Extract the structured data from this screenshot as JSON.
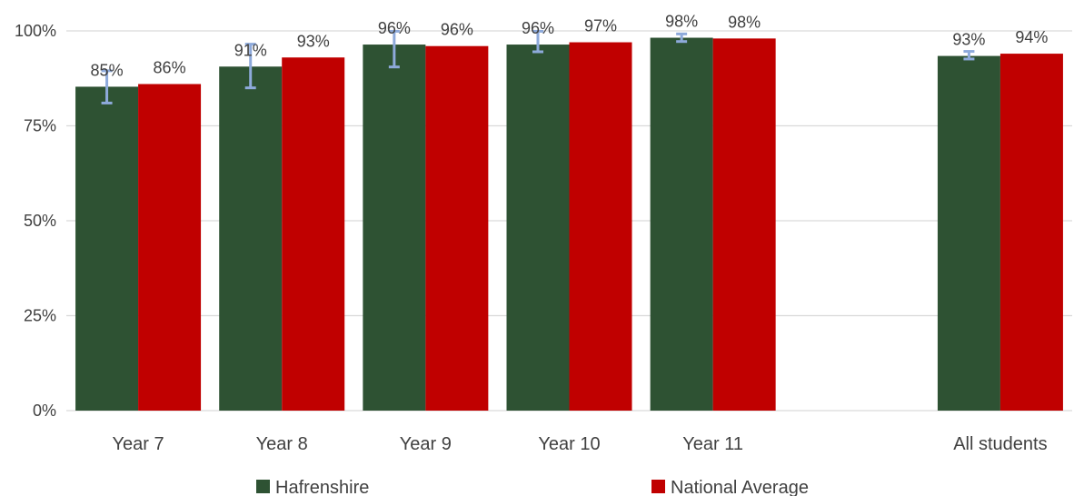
{
  "chart_data": {
    "type": "bar",
    "categories": [
      "Year 7",
      "Year 8",
      "Year 9",
      "Year 10",
      "Year 11",
      "",
      "All students"
    ],
    "series": [
      {
        "name": "Hafrenshire",
        "color": "#2e5233",
        "values": [
          85.3,
          90.6,
          96.4,
          96.4,
          98.2,
          null,
          93.4
        ],
        "labels": [
          "85%",
          "91%",
          "96%",
          "96%",
          "98%",
          "",
          "93%"
        ],
        "error": [
          [
            81,
            89.5
          ],
          [
            85,
            96.5
          ],
          [
            90.5,
            99.9
          ],
          [
            94.5,
            99.9
          ],
          [
            97.2,
            99.2
          ],
          null,
          [
            92.6,
            94.6
          ]
        ]
      },
      {
        "name": "National Average",
        "color": "#c00000",
        "values": [
          86,
          93,
          96,
          97,
          98,
          null,
          94
        ],
        "labels": [
          "86%",
          "93%",
          "96%",
          "97%",
          "98%",
          "",
          "94%"
        ]
      }
    ],
    "ylim": [
      0,
      100
    ],
    "yticks": [
      0,
      25,
      50,
      75,
      100
    ],
    "ytick_labels": [
      "0%",
      "25%",
      "50%",
      "75%",
      "100%"
    ],
    "error_bar_color": "#8eaadb",
    "grid": true,
    "legend_position": "bottom",
    "title": "",
    "xlabel": "",
    "ylabel": ""
  }
}
